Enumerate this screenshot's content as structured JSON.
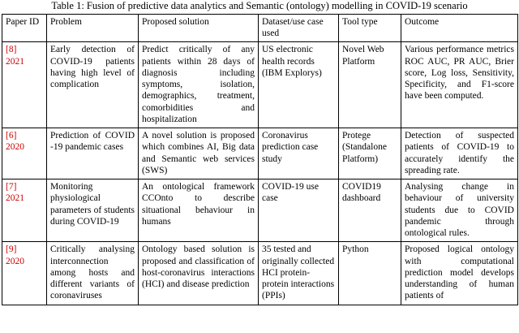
{
  "title": "Table 1: Fusion of predictive data analytics and Semantic (ontology) modelling in COVID-19 scenario",
  "colors": {
    "citation_red": "#cc0000",
    "border": "#000000",
    "background": "#ffffff"
  },
  "table": {
    "headers": [
      "Paper ID",
      "Problem",
      "Proposed solution",
      "Dataset/use case used",
      "Tool type",
      "Outcome"
    ],
    "rows": [
      {
        "id": "[8]",
        "year": "2021",
        "problem": "Early detection of COVID-19 patients having high level of complication",
        "solution": "Predict critically of any patients within 28 days of diagnosis including symptoms, isolation, demographics, treatment, comorbidities and hospitalization",
        "dataset": "US electronic health records (IBM Explorys)",
        "tool": "Novel Web Platform",
        "outcome": "Various performance metrics ROC AUC, PR AUC, Brier score, Log loss, Sensitivity, Specificity, and F1-score have been computed."
      },
      {
        "id": "[6]",
        "year": "2020",
        "problem": "Prediction of COVID -19 pandemic cases",
        "solution": "A novel solution is proposed which combines AI, Big data and Semantic web services (SWS)",
        "dataset": "Coronavirus prediction case study",
        "tool": "Protege (Standalone Platform)",
        "outcome": "Detection of suspected patients of COVID-19 to accurately identify the spreading rate."
      },
      {
        "id": "[7]",
        "year": "2021",
        "problem": "Monitoring physiological parameters of students during COVID-19",
        "solution": "An ontological framework CCOnto to describe situational behaviour in humans",
        "dataset": "COVID-19 use case",
        "tool": "COVID19 dashboard",
        "outcome": "Analysing change in behaviour of university students due to COVID pandemic through ontological rules."
      },
      {
        "id": "[9]",
        "year": "2020",
        "problem": "Critically analysing interconnection among hosts and different variants of coronaviruses",
        "solution": "Ontology based solution is proposed and classification of host-coronavirus interactions (HCI) and disease prediction",
        "dataset": "35 tested and originally collected HCI protein-protein interactions (PPIs)",
        "tool": "Python",
        "outcome": "Proposed logical ontology with computational prediction model develops understanding of human patients of"
      }
    ]
  }
}
